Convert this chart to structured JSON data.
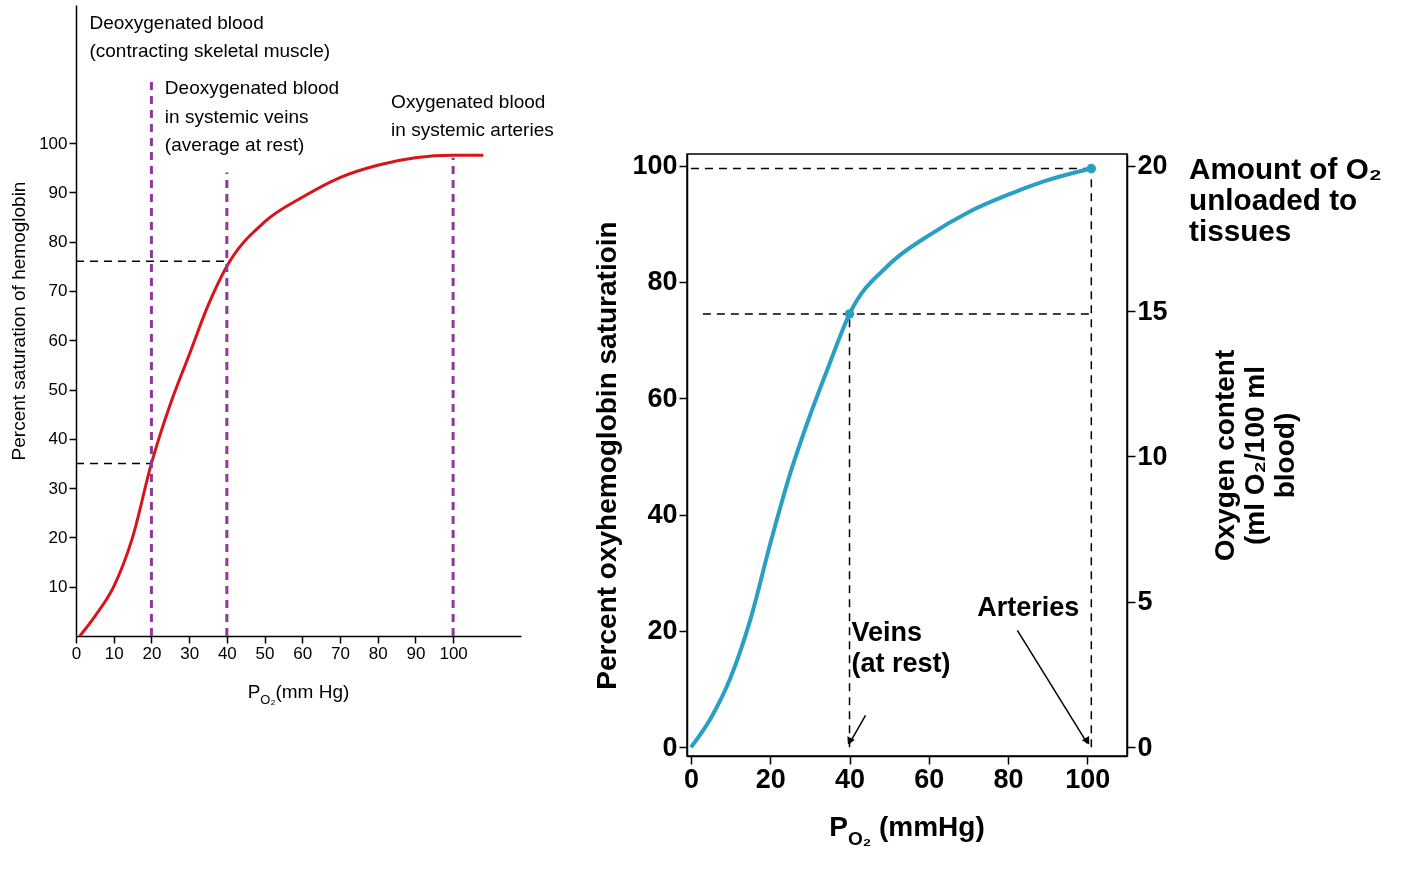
{
  "chart_data": [
    {
      "type": "line",
      "xlabel": "P$_{O₂}$(mm Hg)",
      "ylabel": "Percent saturation of hemoglobin",
      "xlim": [
        0,
        118
      ],
      "ylim": [
        0,
        128
      ],
      "xticks": [
        0,
        10,
        20,
        30,
        40,
        50,
        60,
        70,
        80,
        90,
        100
      ],
      "yticks": [
        10,
        20,
        30,
        40,
        50,
        60,
        70,
        80,
        90,
        100
      ],
      "series": [
        {
          "color": "#d7141a",
          "x": [
            1,
            5,
            10,
            15,
            20,
            25,
            30,
            35,
            40,
            50,
            60,
            70,
            80,
            90,
            100,
            108
          ],
          "values": [
            0,
            4,
            10,
            20,
            35,
            47,
            57,
            67,
            75,
            84,
            89,
            93,
            95.5,
            97,
            97.5,
            97.5
          ]
        },
        {
          "color": "#000000",
          "line_style": "dashed",
          "x": [
            0,
            40
          ],
          "values": [
            76,
            76
          ]
        },
        {
          "color": "#000000",
          "line_style": "dashed",
          "x": [
            0,
            20
          ],
          "values": [
            35,
            35
          ]
        },
        {
          "color": "#8e3b96",
          "line_style": "dashed",
          "x": [
            20,
            20
          ],
          "values": [
            0,
            113
          ]
        },
        {
          "color": "#8e3b96",
          "line_style": "dashed",
          "x": [
            40,
            40
          ],
          "values": [
            0,
            94
          ]
        },
        {
          "color": "#8e3b96",
          "line_style": "dashed",
          "x": [
            100,
            100
          ],
          "values": [
            0,
            97
          ]
        }
      ],
      "annotations": [
        {
          "text": "Deoxygenated blood\n(contracting skeletal muscle)",
          "x": 20,
          "y": 113
        },
        {
          "text": "Deoxygenated blood\nin systemic veins\n(average at rest)",
          "x": 40,
          "y": 94
        },
        {
          "text": "Oxygenated blood\nin systemic arteries",
          "x": 100,
          "y": 97
        }
      ]
    },
    {
      "type": "line",
      "xlabel": "P$_{O₂}$ (mmHg)",
      "ylabel": "Percent oxyhemoglobin saturatioin",
      "y2label": "Oxygen content\n(ml O₂/100 ml\nblood)",
      "xlim": [
        -1,
        110
      ],
      "ylim": [
        -1.5,
        102
      ],
      "y2lim": [
        -0.3,
        20.4
      ],
      "xticks": [
        0,
        20,
        40,
        60,
        80,
        100
      ],
      "yticks": [
        0,
        20,
        40,
        60,
        80,
        100
      ],
      "y2ticks": [
        0,
        5,
        10,
        15,
        20
      ],
      "series": [
        {
          "color": "#000000",
          "line_style": "dashed",
          "x": [
            0,
            101
          ],
          "values": [
            99.5,
            99.5
          ]
        },
        {
          "color": "#000000",
          "line_style": "dashed",
          "x": [
            3,
            101
          ],
          "values": [
            74.5,
            74.5
          ]
        },
        {
          "color": "#000000",
          "line_style": "dashed",
          "x": [
            40,
            40
          ],
          "values": [
            0,
            74.5
          ]
        },
        {
          "color": "#000000",
          "line_style": "dashed",
          "x": [
            101,
            101
          ],
          "values": [
            0,
            99.5
          ]
        },
        {
          "color": "#2a9fc4",
          "x": [
            0,
            5,
            10,
            15,
            20,
            25,
            30,
            35,
            40,
            50,
            60,
            70,
            80,
            90,
            101
          ],
          "values": [
            0,
            5,
            12,
            22,
            35,
            47,
            57,
            66,
            74.5,
            83,
            88,
            92,
            95,
            97.5,
            99.5
          ]
        },
        {
          "type": "scatter",
          "marker": "circle",
          "color": "#2a9fc4",
          "x": [
            40,
            101
          ],
          "values": [
            74.5,
            99.5
          ]
        }
      ],
      "annotations": [
        {
          "text": "Veins\n(at rest)",
          "x": 40,
          "y": 0
        },
        {
          "text": "Arteries",
          "x": 100,
          "y": 0
        },
        "Amount of O₂\nunloaded to\ntissues"
      ]
    }
  ]
}
